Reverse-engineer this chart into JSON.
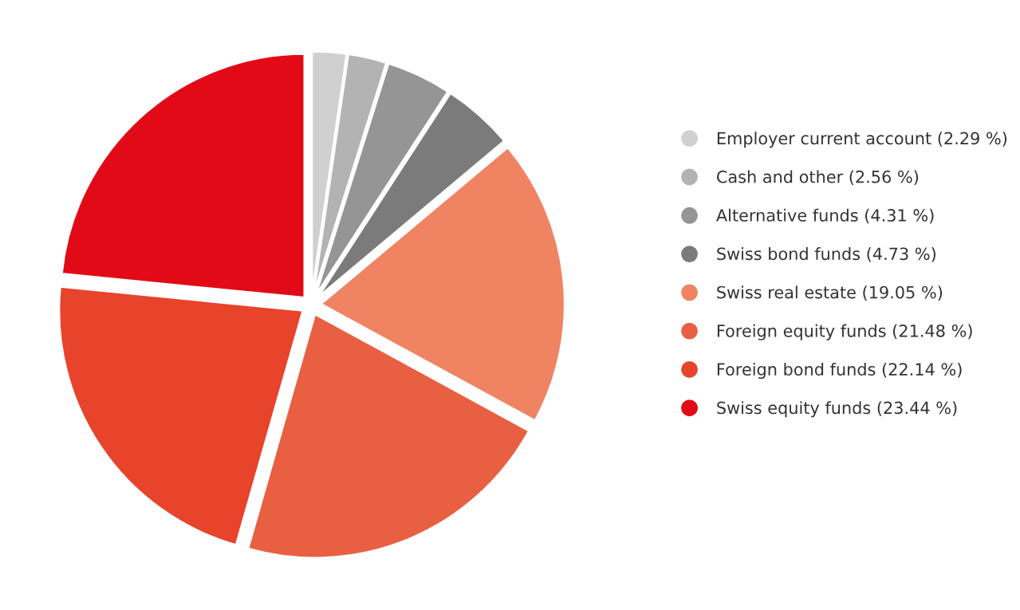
{
  "chart_data": {
    "type": "pie",
    "categories": [
      "Employer current account (2.29 %)",
      "Cash and other (2.56 %)",
      "Alternative funds (4.31 %)",
      "Swiss bond funds (4.73 %)",
      "Swiss real estate (19.05 %)",
      "Foreign equity funds (21.48 %)",
      "Foreign bond funds (22.14 %)",
      "Swiss equity funds (23.44 %)"
    ],
    "values": [
      2.29,
      2.56,
      4.31,
      4.73,
      19.05,
      21.48,
      22.14,
      23.44
    ],
    "colors": [
      "#d0d0d0",
      "#b3b3b3",
      "#959595",
      "#7b7b7b",
      "#f08362",
      "#e95f42",
      "#e8432b",
      "#e20a16"
    ],
    "legend": "right"
  }
}
